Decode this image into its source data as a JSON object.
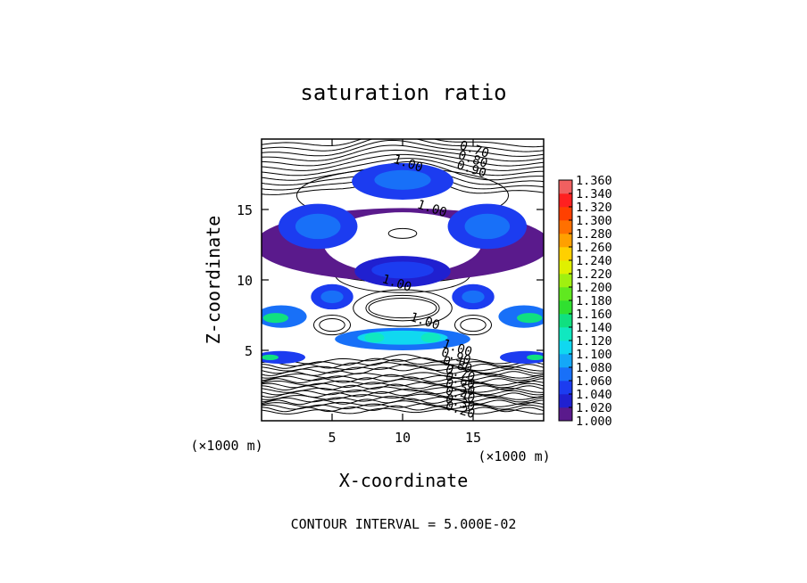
{
  "chart_data": {
    "type": "heatmap",
    "title": "saturation ratio",
    "xlabel": "X-coordinate",
    "ylabel": "Z-coordinate",
    "x_unit": "(×1000 m)",
    "z_unit": "(×1000 m)",
    "xlim": [
      0,
      20
    ],
    "ylim": [
      0,
      20
    ],
    "x_ticks": [
      5,
      10,
      15
    ],
    "y_ticks": [
      5,
      10,
      15
    ],
    "footer": "CONTOUR INTERVAL = 5.000E-02",
    "contour_labels": [
      {
        "text": "0.70",
        "x": 15.0,
        "z": 19.0
      },
      {
        "text": "0.80",
        "x": 14.9,
        "z": 18.3
      },
      {
        "text": "0.90",
        "x": 14.8,
        "z": 17.6
      },
      {
        "text": "1.00",
        "x": 10.3,
        "z": 18.0
      },
      {
        "text": "1.00",
        "x": 12.0,
        "z": 14.8
      },
      {
        "text": "1.00",
        "x": 9.5,
        "z": 9.5
      },
      {
        "text": "1.00",
        "x": 11.5,
        "z": 6.8
      },
      {
        "text": "1.00",
        "x": 13.8,
        "z": 4.9
      },
      {
        "text": "0.90",
        "x": 13.7,
        "z": 4.3
      },
      {
        "text": "0.80",
        "x": 13.8,
        "z": 3.7
      },
      {
        "text": "0.70",
        "x": 14.0,
        "z": 3.1
      },
      {
        "text": "0.60",
        "x": 14.0,
        "z": 2.6
      },
      {
        "text": "0.50",
        "x": 14.0,
        "z": 2.1
      },
      {
        "text": "0.40",
        "x": 14.0,
        "z": 1.6
      },
      {
        "text": "0.30",
        "x": 14.0,
        "z": 1.0
      },
      {
        "text": "0.20",
        "x": 14.0,
        "z": 0.5
      }
    ],
    "colorbar": {
      "levels": [
        "1.000",
        "1.020",
        "1.040",
        "1.060",
        "1.080",
        "1.100",
        "1.120",
        "1.140",
        "1.160",
        "1.180",
        "1.200",
        "1.220",
        "1.240",
        "1.260",
        "1.280",
        "1.300",
        "1.320",
        "1.340",
        "1.360"
      ],
      "colors": [
        "#5a1a8c",
        "#2020d0",
        "#1c3cf0",
        "#1870f8",
        "#14a8f8",
        "#10d8f0",
        "#10e8c0",
        "#10e080",
        "#30e030",
        "#60e820",
        "#a0f010",
        "#e0f000",
        "#ffd000",
        "#ffa000",
        "#ff7000",
        "#ff4000",
        "#ff2020",
        "#f06060"
      ]
    }
  }
}
